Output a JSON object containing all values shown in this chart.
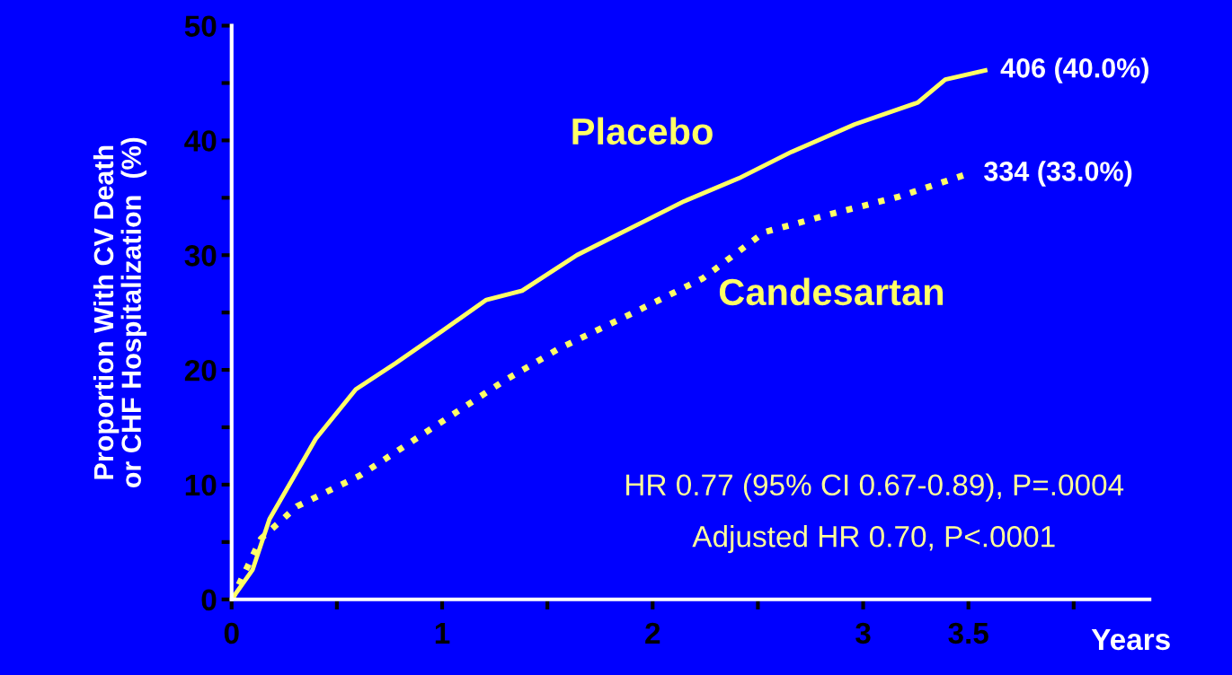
{
  "chart_data": {
    "type": "line",
    "xlabel": "Years",
    "ylabel": "Proportion With CV Death\nor CHF Hospitalization  (%)",
    "xlim": [
      0,
      4.36
    ],
    "ylim": [
      0,
      50
    ],
    "xticks": [
      0,
      {
        "value": 0.5,
        "label": null
      },
      1,
      {
        "value": 1.5,
        "label": null
      },
      2,
      {
        "value": 2.5,
        "label": null
      },
      3,
      3.5,
      {
        "value": 4,
        "label": null
      }
    ],
    "yticks": [
      0,
      {
        "value": 5,
        "label": null
      },
      10,
      {
        "value": 15,
        "label": null
      },
      20,
      {
        "value": 25,
        "label": null
      },
      30,
      {
        "value": 35,
        "label": null
      },
      40,
      {
        "value": 45,
        "label": null
      },
      50
    ],
    "grid": false,
    "legend": false,
    "marker": "none",
    "series": [
      {
        "name": "Placebo",
        "color": "#ffff66",
        "line_style": "solid",
        "x": [
          0,
          0.1,
          0.18,
          0.4,
          0.59,
          0.78,
          1.0,
          1.21,
          1.38,
          1.64,
          1.9,
          2.15,
          2.41,
          2.66,
          2.96,
          3.26,
          3.39,
          3.58
        ],
        "values": [
          0,
          2.6,
          7,
          14,
          18.3,
          20.6,
          23.4,
          26.1,
          26.9,
          30,
          32.4,
          34.7,
          36.7,
          39,
          41.4,
          43.3,
          45.3,
          46.1
        ]
      },
      {
        "name": "Candesartan",
        "color": "#ffff66",
        "line_style": "dotted",
        "x": [
          0,
          0.14,
          0.31,
          0.61,
          1.0,
          1.29,
          1.55,
          1.9,
          2.24,
          2.53,
          2.83,
          3.17,
          3.5
        ],
        "values": [
          0,
          5.3,
          8.1,
          10.8,
          15.5,
          19,
          21.8,
          24.9,
          28,
          32,
          33.5,
          35.1,
          37.1
        ]
      }
    ],
    "annotations": [
      {
        "text": "406 (40.0%)",
        "x": 3.58,
        "y": 46.1
      },
      {
        "text": "334 (33.0%)",
        "x": 3.5,
        "y": 37.1
      },
      "HR 0.77 (95% CI 0.67-0.89), P=.0004",
      "Adjusted HR 0.70, P<.0001"
    ]
  }
}
